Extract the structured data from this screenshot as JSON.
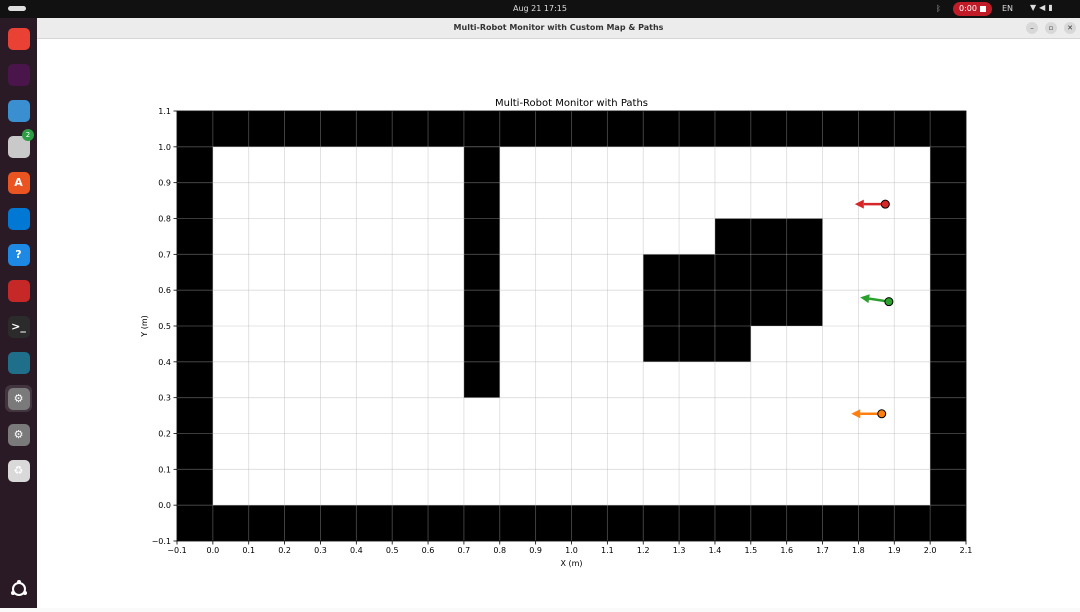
{
  "topbar": {
    "datetime": "Aug 21  17:15",
    "recording": "0:00",
    "language": "EN"
  },
  "dock": {
    "items": [
      {
        "name": "chrome-icon",
        "glyph": "",
        "color": "#e94235"
      },
      {
        "name": "slack-icon",
        "glyph": "",
        "color": "#4a154b"
      },
      {
        "name": "layers-app-icon",
        "glyph": "",
        "color": "#3a8fd0"
      },
      {
        "name": "files-icon",
        "glyph": "",
        "color": "#c9c9c9",
        "badge": "2"
      },
      {
        "name": "app-center-icon",
        "glyph": "A",
        "color": "#e95420"
      },
      {
        "name": "vscode-icon",
        "glyph": "",
        "color": "#0078d4"
      },
      {
        "name": "help-icon",
        "glyph": "?",
        "color": "#1e88e5"
      },
      {
        "name": "remote-desktop-icon",
        "glyph": "",
        "color": "#c62828"
      },
      {
        "name": "terminal-icon",
        "glyph": ">_",
        "color": "#2b2b2b"
      },
      {
        "name": "panel-app-icon",
        "glyph": "",
        "color": "#1f6f8b"
      },
      {
        "name": "settings-icon",
        "glyph": "⚙",
        "color": "#7a7a7a",
        "active": true
      },
      {
        "name": "settings-icon-2",
        "glyph": "⚙",
        "color": "#7a7a7a"
      },
      {
        "name": "trash-icon",
        "glyph": "♻",
        "color": "#d9d9d9"
      }
    ],
    "ubuntu_logo": "ubuntu-logo-icon"
  },
  "window": {
    "title": "Multi-Robot Monitor with Custom Map & Paths"
  },
  "chart_data": {
    "type": "scatter",
    "title": "Multi-Robot Monitor with Paths",
    "xlabel": "X (m)",
    "ylabel": "Y (m)",
    "xlim": [
      -0.1,
      2.1
    ],
    "ylim": [
      -0.1,
      1.1
    ],
    "xticks": [
      -0.1,
      0.0,
      0.1,
      0.2,
      0.3,
      0.4,
      0.5,
      0.6,
      0.7,
      0.8,
      0.9,
      1.0,
      1.1,
      1.2,
      1.3,
      1.4,
      1.5,
      1.6,
      1.7,
      1.8,
      1.9,
      2.0,
      2.1
    ],
    "xtick_labels": [
      "−0.1",
      "0.0",
      "0.1",
      "0.2",
      "0.3",
      "0.4",
      "0.5",
      "0.6",
      "0.7",
      "0.8",
      "0.9",
      "1.0",
      "1.1",
      "1.2",
      "1.3",
      "1.4",
      "1.5",
      "1.6",
      "1.7",
      "1.8",
      "1.9",
      "2.0",
      "2.1"
    ],
    "yticks": [
      -0.1,
      0.0,
      0.1,
      0.2,
      0.3,
      0.4,
      0.5,
      0.6,
      0.7,
      0.8,
      0.9,
      1.0,
      1.1
    ],
    "ytick_labels": [
      "−0.1",
      "0.0",
      "0.1",
      "0.2",
      "0.3",
      "0.4",
      "0.5",
      "0.6",
      "0.7",
      "0.8",
      "0.9",
      "1.0",
      "1.1"
    ],
    "grid": true,
    "obstacles": [
      {
        "x0": -0.1,
        "x1": 2.1,
        "y0": 1.0,
        "y1": 1.1
      },
      {
        "x0": -0.1,
        "x1": 2.1,
        "y0": -0.1,
        "y1": 0.0
      },
      {
        "x0": -0.1,
        "x1": 0.0,
        "y0": -0.1,
        "y1": 1.1
      },
      {
        "x0": 2.0,
        "x1": 2.1,
        "y0": -0.1,
        "y1": 1.1
      },
      {
        "x0": 0.7,
        "x1": 0.8,
        "y0": 0.3,
        "y1": 1.0
      },
      {
        "x0": 1.4,
        "x1": 1.7,
        "y0": 0.5,
        "y1": 0.8
      },
      {
        "x0": 1.2,
        "x1": 1.4,
        "y0": 0.4,
        "y1": 0.7
      },
      {
        "x0": 1.4,
        "x1": 1.5,
        "y0": 0.4,
        "y1": 0.5
      }
    ],
    "robots": [
      {
        "color": "#d62728",
        "x": 1.875,
        "y": 0.84,
        "heading_dx": -0.085,
        "heading_dy": 0.0
      },
      {
        "color": "#2ca02c",
        "x": 1.885,
        "y": 0.568,
        "heading_dx": -0.08,
        "heading_dy": 0.012
      },
      {
        "color": "#ff7f0e",
        "x": 1.865,
        "y": 0.255,
        "heading_dx": -0.085,
        "heading_dy": 0.0
      }
    ]
  }
}
